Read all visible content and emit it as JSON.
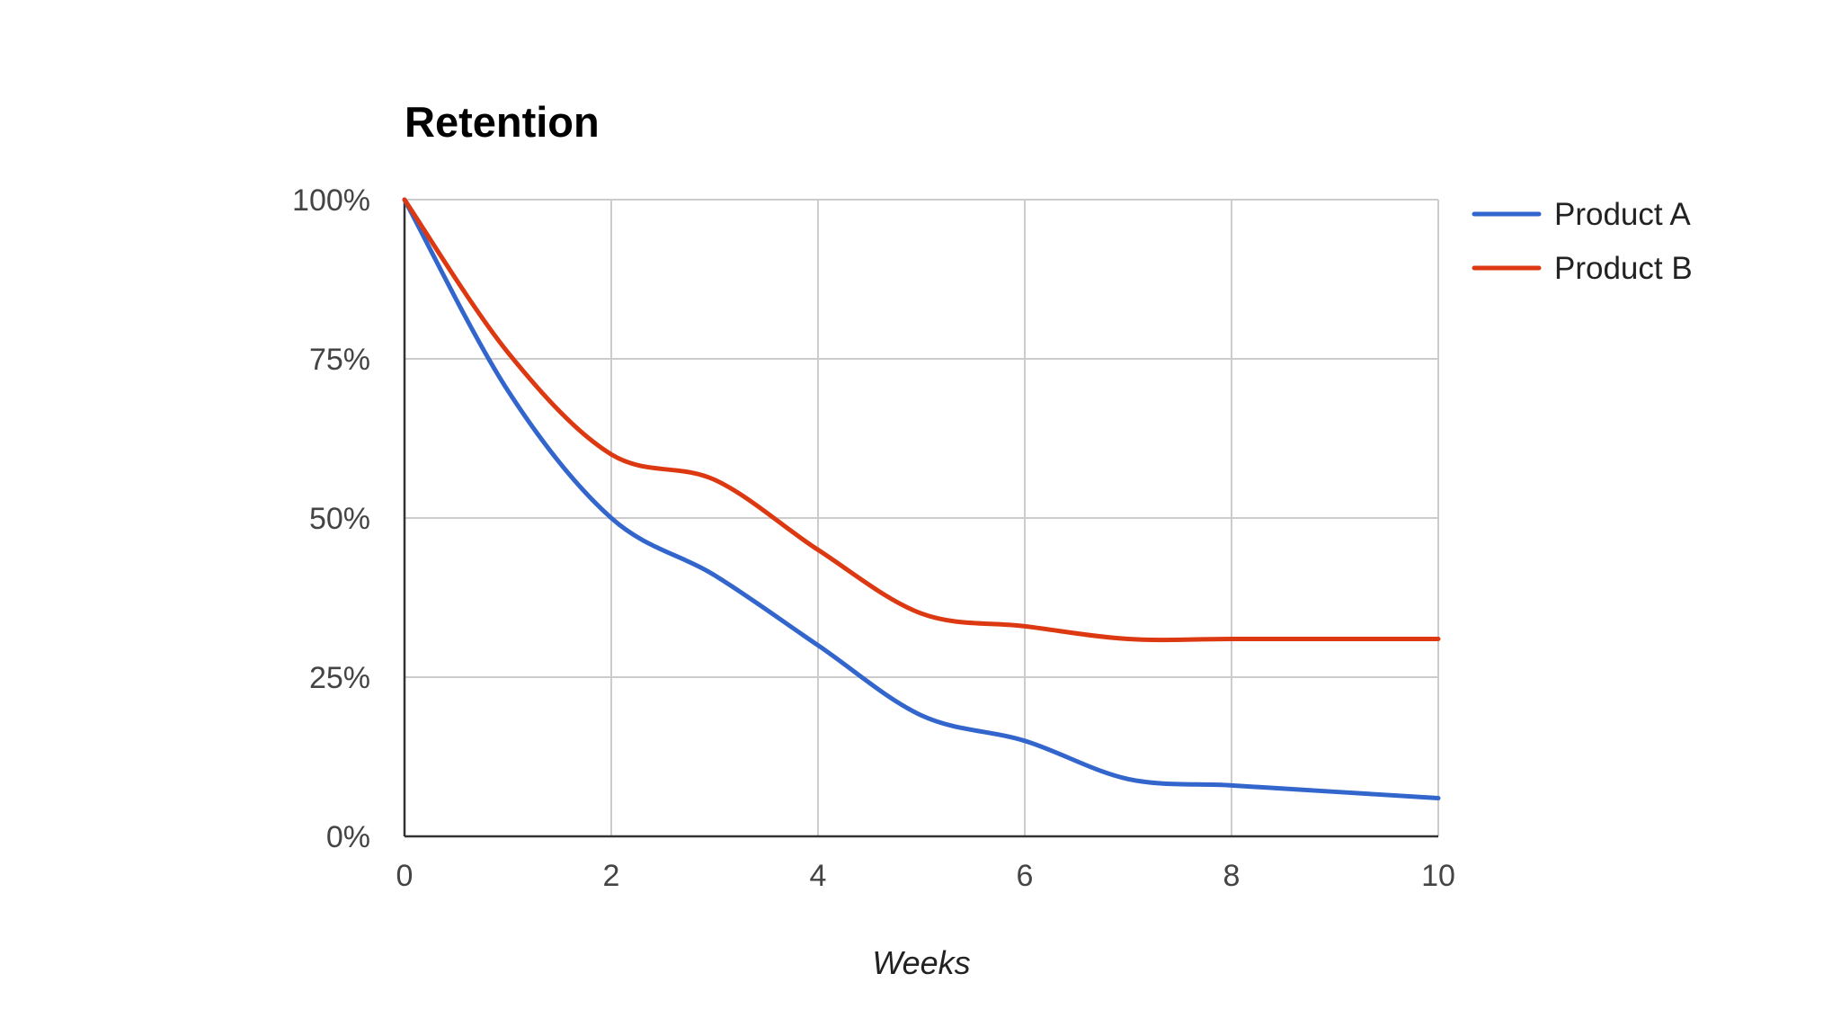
{
  "chart_data": {
    "type": "line",
    "title": "Retention",
    "xlabel": "Weeks",
    "ylabel": "",
    "xlim": [
      0,
      10
    ],
    "ylim": [
      0,
      100
    ],
    "xticks": [
      "0",
      "2",
      "4",
      "6",
      "8",
      "10"
    ],
    "yticks": [
      "0%",
      "25%",
      "50%",
      "75%",
      "100%"
    ],
    "grid": true,
    "legend_position": "right",
    "x": [
      0,
      1,
      2,
      3,
      4,
      5,
      6,
      7,
      8,
      9,
      10
    ],
    "series": [
      {
        "name": "Product A",
        "color": "#3366cc",
        "values": [
          100,
          70,
          50,
          41,
          30,
          19,
          15,
          9,
          8,
          7,
          6
        ]
      },
      {
        "name": "Product B",
        "color": "#dc3912",
        "values": [
          100,
          76,
          60,
          56,
          45,
          35,
          33,
          31,
          31,
          31,
          31
        ]
      }
    ]
  }
}
